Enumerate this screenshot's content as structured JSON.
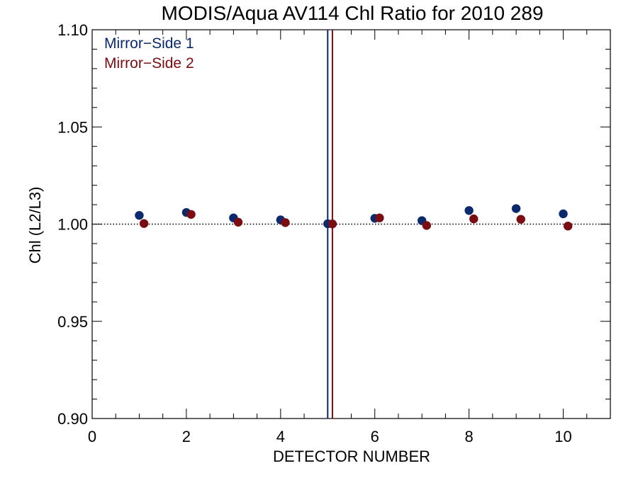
{
  "chart_data": {
    "type": "scatter",
    "title": "MODIS/Aqua AV114 Chl Ratio for 2010 289",
    "xlabel": "DETECTOR NUMBER",
    "ylabel": "Chl (L2/L3)",
    "xlim": [
      0,
      11
    ],
    "ylim": [
      0.9,
      1.1
    ],
    "x_ticks": [
      0,
      2,
      4,
      6,
      8,
      10
    ],
    "x_tick_labels": [
      "0",
      "2",
      "4",
      "6",
      "8",
      "10"
    ],
    "y_ticks": [
      0.9,
      0.95,
      1.0,
      1.05,
      1.1
    ],
    "y_tick_labels": [
      "0.90",
      "0.95",
      "1.00",
      "1.05",
      "1.10"
    ],
    "grid": false,
    "legend_position": "top-left",
    "reference_line": {
      "y": 1.0,
      "style": "dotted",
      "color": "#000000"
    },
    "vertical_lines": [
      {
        "x": 5.0,
        "color": "#0b2a6e"
      },
      {
        "x": 5.1,
        "color": "#7a0c12"
      }
    ],
    "series": [
      {
        "name": "Mirror−Side 1",
        "color": "#0b2a6e",
        "points": [
          {
            "x": 1,
            "y": 1.0045
          },
          {
            "x": 2,
            "y": 1.006
          },
          {
            "x": 3,
            "y": 1.0032
          },
          {
            "x": 4,
            "y": 1.0022
          },
          {
            "x": 5,
            "y": 1.0002
          },
          {
            "x": 6,
            "y": 1.003
          },
          {
            "x": 7,
            "y": 1.0018
          },
          {
            "x": 8,
            "y": 1.007
          },
          {
            "x": 9,
            "y": 1.008
          },
          {
            "x": 10,
            "y": 1.0053
          }
        ]
      },
      {
        "name": "Mirror−Side 2",
        "color": "#7a0c12",
        "points": [
          {
            "x": 1.1,
            "y": 1.0003
          },
          {
            "x": 2.1,
            "y": 1.005
          },
          {
            "x": 3.1,
            "y": 1.001
          },
          {
            "x": 4.1,
            "y": 1.0008
          },
          {
            "x": 5.1,
            "y": 1.0001
          },
          {
            "x": 6.1,
            "y": 1.0032
          },
          {
            "x": 7.1,
            "y": 0.9993
          },
          {
            "x": 8.1,
            "y": 1.0027
          },
          {
            "x": 9.1,
            "y": 1.0025
          },
          {
            "x": 10.1,
            "y": 0.999
          }
        ]
      }
    ]
  }
}
